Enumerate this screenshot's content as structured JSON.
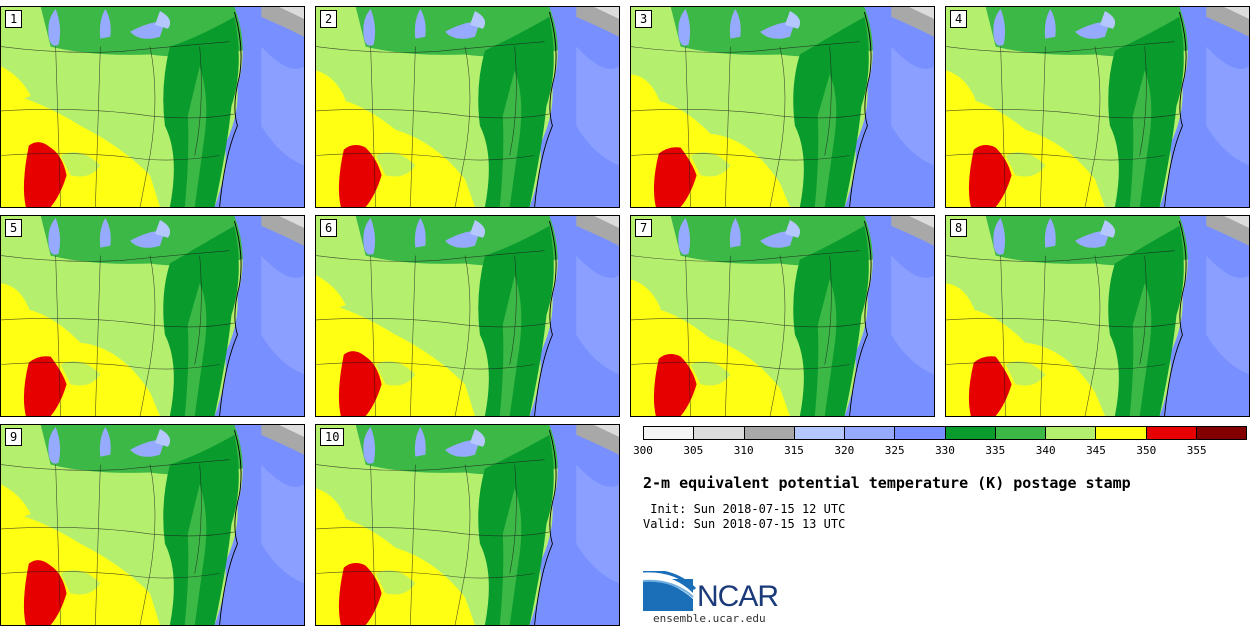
{
  "stamps": [
    {
      "label": "1",
      "variant": 0
    },
    {
      "label": "2",
      "variant": 1
    },
    {
      "label": "3",
      "variant": 2
    },
    {
      "label": "4",
      "variant": 1
    },
    {
      "label": "5",
      "variant": 2
    },
    {
      "label": "6",
      "variant": 0
    },
    {
      "label": "7",
      "variant": 1
    },
    {
      "label": "8",
      "variant": 2
    },
    {
      "label": "9",
      "variant": 0
    },
    {
      "label": "10",
      "variant": 1
    }
  ],
  "colorbar": {
    "colors": [
      "#f4f4f4",
      "#dcdcdc",
      "#a8a8a8",
      "#b4c8ff",
      "#96aaff",
      "#7890ff",
      "#0a9b2d",
      "#3cb846",
      "#b4f06e",
      "#ffff14",
      "#e60000",
      "#820000"
    ],
    "ticks": [
      "300",
      "305",
      "310",
      "315",
      "320",
      "325",
      "330",
      "335",
      "340",
      "345",
      "350",
      "355"
    ]
  },
  "title": "2-m equivalent potential temperature (K) postage stamp",
  "init_line": " Init: Sun 2018-07-15 12 UTC",
  "valid_line": "Valid: Sun 2018-07-15 13 UTC",
  "logo": {
    "text": "NCAR",
    "url": "ensemble.ucar.edu"
  }
}
